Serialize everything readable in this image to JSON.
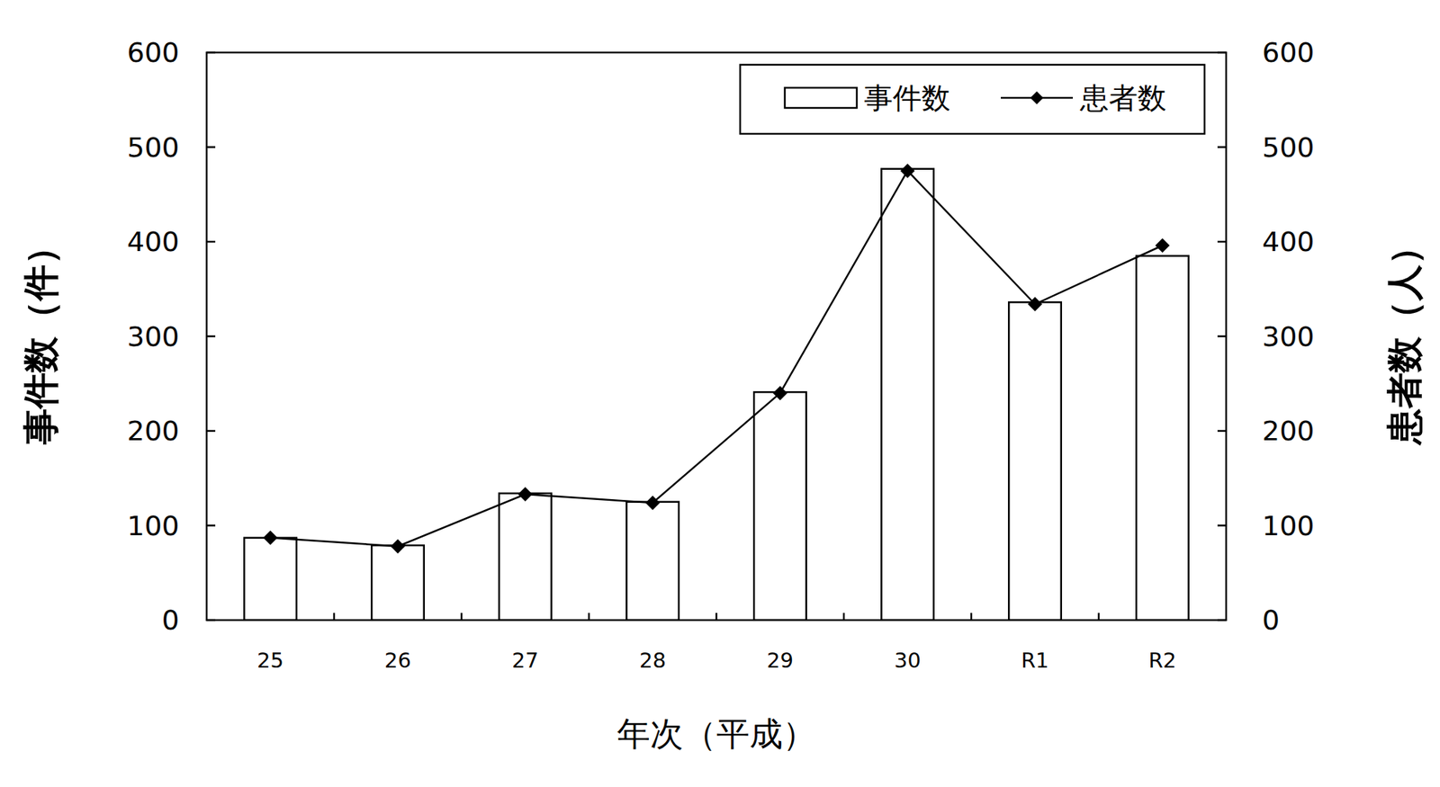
{
  "chart_data": {
    "type": "bar",
    "x_label": "年次（平成）",
    "y_label": "事件数（件）",
    "y2_label": "患者数（人）",
    "categories": [
      "25",
      "26",
      "27",
      "28",
      "29",
      "30",
      "R1",
      "R2"
    ],
    "series": [
      {
        "name": "事件数",
        "type": "bar",
        "color": "#ffffff",
        "axis": "y",
        "values": [
          87,
          79,
          134,
          125,
          241,
          477,
          336,
          385
        ]
      },
      {
        "name": "患者数",
        "type": "line",
        "color": "#000000",
        "axis": "y2",
        "marker": "diamond",
        "line_style": "solid",
        "values": [
          87,
          78,
          133,
          124,
          240,
          475,
          334,
          396
        ]
      }
    ],
    "ylim": [
      0,
      600
    ],
    "yticks": [
      0,
      100,
      200,
      300,
      400,
      500,
      600
    ],
    "y2lim": [
      0,
      600
    ],
    "y2ticks": [
      0,
      100,
      200,
      300,
      400,
      500,
      600
    ],
    "legend": "top-right",
    "grid": false
  }
}
